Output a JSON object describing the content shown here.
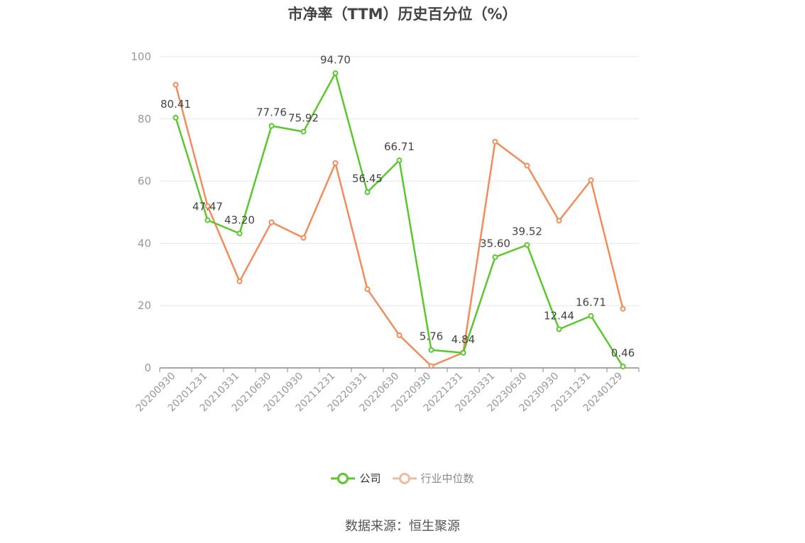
{
  "chart_data": {
    "type": "line",
    "title": "市净率（TTM）历史百分位（%）",
    "categories": [
      "20200930",
      "20201231",
      "20210331",
      "20210630",
      "20210930",
      "20211231",
      "20220331",
      "20220630",
      "20220930",
      "20221231",
      "20230331",
      "20230630",
      "20230930",
      "20231231",
      "20240129"
    ],
    "series": [
      {
        "name": "公司",
        "color": "#5ac82d",
        "values": [
          80.41,
          47.47,
          43.2,
          77.76,
          75.92,
          94.7,
          56.45,
          66.71,
          5.76,
          4.84,
          35.6,
          39.52,
          12.44,
          16.71,
          0.46
        ],
        "labels": [
          "80.41",
          "47.47",
          "43.20",
          "77.76",
          "75.92",
          "94.70",
          "56.45",
          "66.71",
          "5.76",
          "4.84",
          "35.60",
          "39.52",
          "12.44",
          "16.71",
          "0.46"
        ]
      },
      {
        "name": "行业中位数",
        "color": "#f28c5a",
        "values": [
          91.0,
          52.0,
          27.8,
          46.8,
          41.8,
          65.8,
          25.3,
          10.5,
          0.6,
          4.9,
          72.7,
          65.0,
          47.3,
          60.3,
          19.0
        ]
      }
    ],
    "ylim": [
      0,
      100
    ],
    "yticks": [
      0,
      20,
      40,
      60,
      80,
      100
    ],
    "grid": true,
    "legend": "bottom-center"
  },
  "source_text": "数据来源：恒生聚源"
}
